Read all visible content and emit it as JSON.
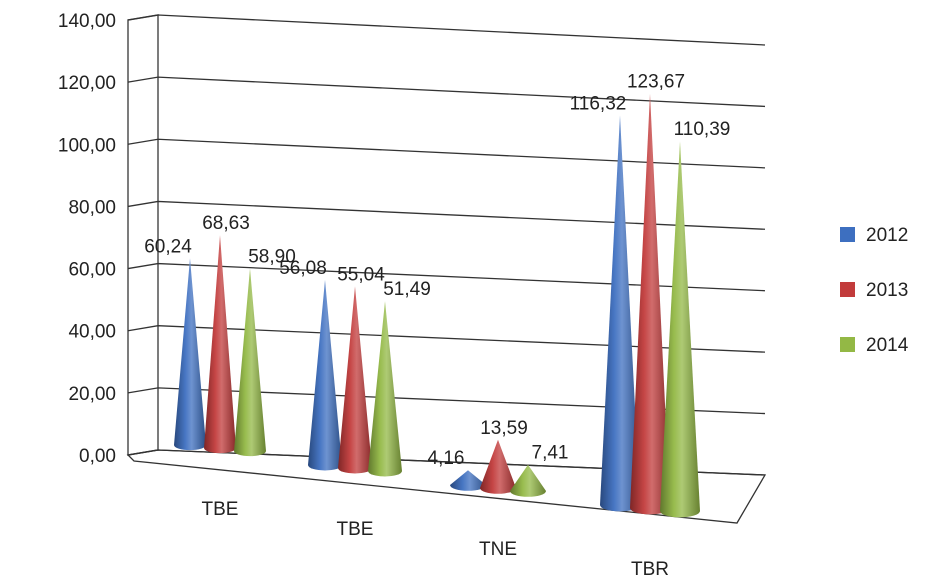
{
  "chart_data": {
    "type": "bar",
    "style": "3d-cone",
    "categories": [
      "TBE",
      "TBE",
      "TNE",
      "TBR"
    ],
    "series": [
      {
        "name": "2012",
        "values": [
          60.24,
          56.08,
          4.16,
          116.32
        ],
        "labels": [
          "60,24",
          "56,08",
          "4,16",
          "116,32"
        ],
        "color": "#3d6fc0"
      },
      {
        "name": "2013",
        "values": [
          68.63,
          55.04,
          13.59,
          123.67
        ],
        "labels": [
          "68,63",
          "55,04",
          "13,59",
          "123,67"
        ],
        "color": "#c23b3b"
      },
      {
        "name": "2014",
        "values": [
          58.9,
          51.49,
          7.41,
          110.39
        ],
        "labels": [
          "58,90",
          "51,49",
          "7,41",
          "110,39"
        ],
        "color": "#93b845"
      }
    ],
    "y_ticks": [
      "0,00",
      "20,00",
      "40,00",
      "60,00",
      "80,00",
      "100,00",
      "120,00",
      "140,00"
    ],
    "ylim": [
      0,
      140
    ],
    "grid": true,
    "legend_position": "right"
  }
}
